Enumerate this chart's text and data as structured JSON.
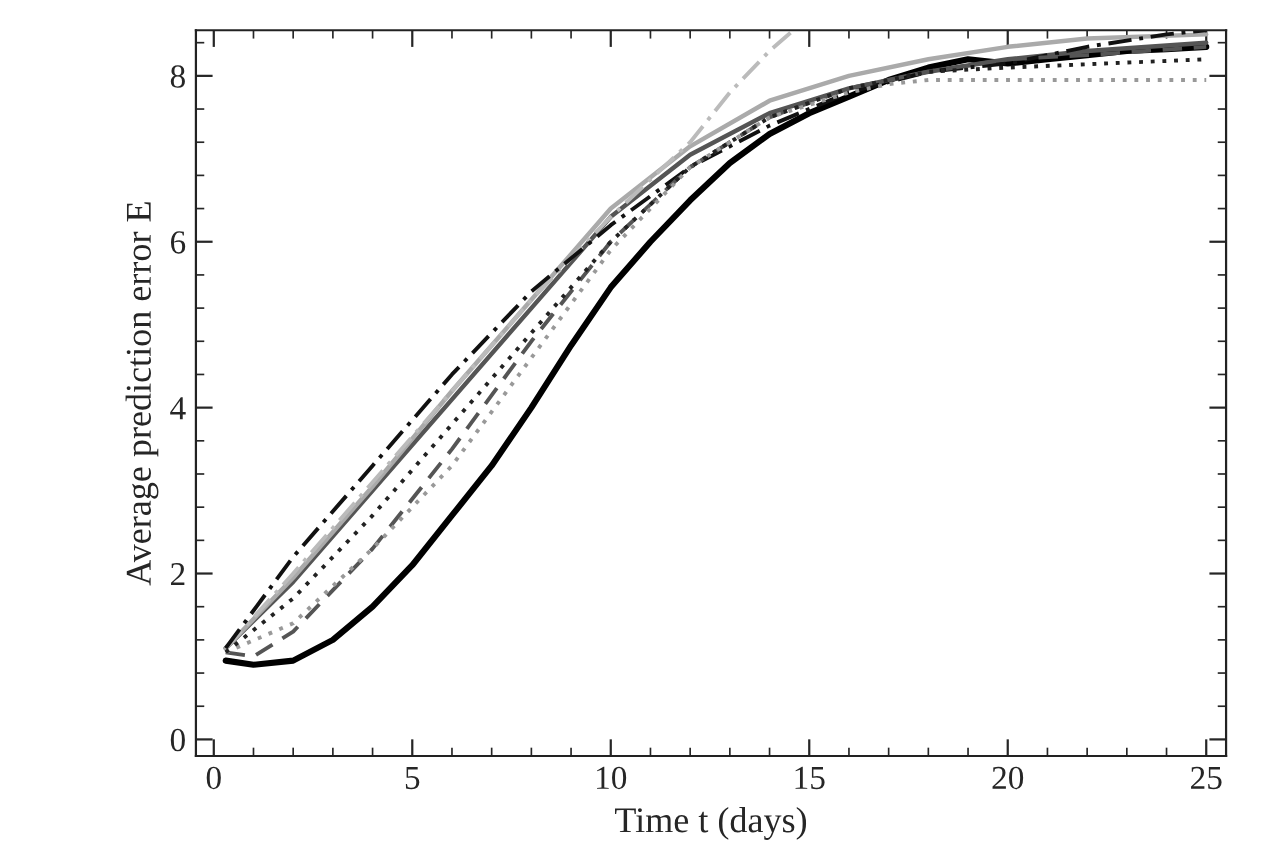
{
  "chart_data": {
    "type": "line",
    "xlabel": "Time t (days)",
    "ylabel": "Average prediction error E",
    "xlim": [
      -0.45,
      25.5
    ],
    "ylim": [
      -0.2,
      8.55
    ],
    "xticks": [
      0,
      5,
      10,
      15,
      20,
      25
    ],
    "yticks": [
      0,
      2,
      4,
      6,
      8
    ],
    "grid": false,
    "legend": false,
    "series": [
      {
        "color": "#000000",
        "line_style": "solid",
        "x": [
          0.3,
          1,
          2,
          3,
          4,
          5,
          6,
          7,
          8,
          9,
          10,
          11,
          12,
          13,
          14,
          15,
          16,
          17,
          18,
          19,
          20,
          21,
          22,
          23,
          24,
          25
        ],
        "values": [
          0.95,
          0.9,
          0.95,
          1.2,
          1.6,
          2.1,
          2.7,
          3.3,
          4.0,
          4.75,
          5.45,
          6.0,
          6.5,
          6.95,
          7.3,
          7.55,
          7.75,
          7.95,
          8.1,
          8.2,
          8.15,
          8.2,
          8.25,
          8.3,
          8.32,
          8.35
        ]
      },
      {
        "color": "#555555",
        "line_style": "solid",
        "x": [
          0.3,
          2,
          4,
          6,
          8,
          10,
          12,
          14,
          16,
          18,
          20,
          22,
          25
        ],
        "values": [
          1.1,
          1.9,
          3.0,
          4.1,
          5.2,
          6.3,
          7.05,
          7.55,
          7.85,
          8.05,
          8.2,
          8.3,
          8.4
        ]
      },
      {
        "color": "#aaaaaa",
        "line_style": "solid",
        "x": [
          0.3,
          2,
          4,
          6,
          8,
          10,
          12,
          14,
          16,
          18,
          20,
          22,
          25
        ],
        "values": [
          1.1,
          1.95,
          3.05,
          4.2,
          5.3,
          6.4,
          7.15,
          7.7,
          8.0,
          8.2,
          8.35,
          8.45,
          8.5
        ]
      },
      {
        "color": "#bbbbbb",
        "line_style": "dashdot",
        "x": [
          0.3,
          2,
          4,
          6,
          8,
          10,
          12,
          13,
          14,
          14.6
        ],
        "values": [
          1.1,
          2.0,
          3.1,
          4.2,
          5.3,
          6.3,
          7.2,
          7.8,
          8.3,
          8.55
        ]
      },
      {
        "color": "#111111",
        "line_style": "dashdot",
        "x": [
          0.3,
          2,
          4,
          6,
          8,
          10,
          12,
          14,
          16,
          18,
          20,
          22,
          24,
          25
        ],
        "values": [
          1.1,
          2.2,
          3.3,
          4.4,
          5.4,
          6.2,
          6.9,
          7.4,
          7.8,
          8.05,
          8.15,
          8.35,
          8.5,
          8.55
        ]
      },
      {
        "color": "#555555",
        "line_style": "dashed",
        "x": [
          0.3,
          1,
          2,
          4,
          6,
          8,
          10,
          12,
          14,
          16,
          18,
          20,
          22,
          25
        ],
        "values": [
          1.05,
          1.0,
          1.3,
          2.3,
          3.5,
          4.8,
          6.0,
          6.9,
          7.5,
          7.85,
          8.05,
          8.2,
          8.25,
          8.35
        ]
      },
      {
        "color": "#999999",
        "line_style": "dotted",
        "x": [
          0.3,
          2,
          4,
          6,
          8,
          10,
          12,
          14,
          16,
          17,
          18,
          25
        ],
        "values": [
          1.05,
          1.4,
          2.3,
          3.3,
          4.6,
          5.9,
          6.9,
          7.5,
          7.8,
          7.9,
          7.95,
          7.95
        ]
      },
      {
        "color": "#222222",
        "line_style": "dotted",
        "x": [
          0.3,
          2,
          4,
          6,
          8,
          10,
          12,
          14,
          16,
          18,
          20,
          25
        ],
        "values": [
          1.05,
          1.7,
          2.7,
          3.8,
          4.9,
          6.0,
          6.9,
          7.5,
          7.85,
          8.05,
          8.1,
          8.2
        ]
      }
    ]
  }
}
